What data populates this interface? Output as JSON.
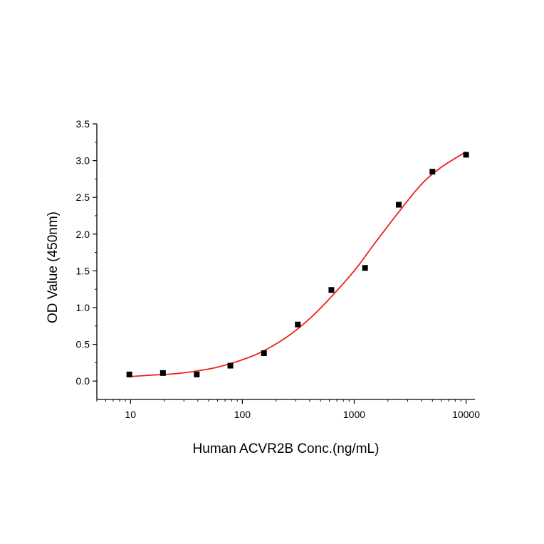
{
  "chart_data": {
    "type": "scatter",
    "title": "",
    "xlabel": "Human ACVR2B Conc.(ng/mL)",
    "ylabel": "OD Value (450nm)",
    "x_scale": "log",
    "xlim": [
      5,
      12000
    ],
    "ylim": [
      -0.25,
      3.5
    ],
    "x_ticks": [
      10,
      100,
      1000,
      10000
    ],
    "x_tick_labels": [
      "10",
      "100",
      "1000",
      "10000"
    ],
    "y_ticks": [
      0.0,
      0.5,
      1.0,
      1.5,
      2.0,
      2.5,
      3.0,
      3.5
    ],
    "y_tick_labels": [
      "0.0",
      "0.5",
      "1.0",
      "1.5",
      "2.0",
      "2.5",
      "3.0",
      "3.5"
    ],
    "grid": false,
    "legend": "none",
    "series": [
      {
        "type": "scatter",
        "color": "#000000",
        "marker": "square",
        "x": [
          9.77,
          19.5,
          39.1,
          78.1,
          156,
          313,
          625,
          1250,
          2500,
          5000,
          10000
        ],
        "y": [
          0.09,
          0.11,
          0.09,
          0.21,
          0.38,
          0.77,
          1.24,
          1.54,
          2.4,
          2.85,
          3.08
        ]
      },
      {
        "type": "line",
        "color": "#e8231f",
        "fit": "4PL",
        "x": [
          9.77,
          15,
          25,
          40,
          60,
          100,
          150,
          250,
          400,
          600,
          1000,
          1500,
          2500,
          4000,
          6000,
          10000
        ],
        "y": [
          0.06,
          0.08,
          0.1,
          0.14,
          0.19,
          0.29,
          0.4,
          0.6,
          0.85,
          1.12,
          1.5,
          1.86,
          2.3,
          2.68,
          2.91,
          3.12
        ]
      }
    ]
  }
}
